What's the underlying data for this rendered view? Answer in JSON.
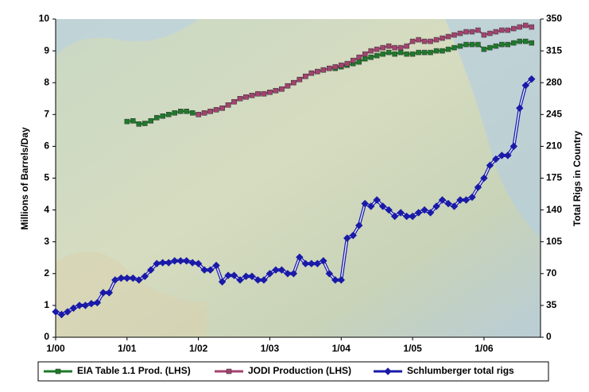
{
  "chart_data": {
    "type": "line",
    "ylabel": "Millions of Barrels/Day",
    "y2label": "Total Rigs in Country",
    "x": [
      0,
      1,
      2,
      3,
      4,
      5,
      6,
      7,
      8,
      9,
      10,
      11,
      12,
      13,
      14,
      15,
      16,
      17,
      18,
      19,
      20,
      21,
      22,
      23,
      24,
      25,
      26,
      27,
      28,
      29,
      30,
      31,
      32,
      33,
      34,
      35,
      36,
      37,
      38,
      39,
      40,
      41,
      42,
      43,
      44,
      45,
      46,
      47,
      48,
      49,
      50,
      51,
      52,
      53,
      54,
      55,
      56,
      57,
      58,
      59,
      60,
      61,
      62,
      63,
      64,
      65,
      66,
      67,
      68,
      69,
      70,
      71,
      72,
      73,
      74,
      75,
      76,
      77,
      78,
      79,
      80
    ],
    "xlim": [
      0,
      81.5
    ],
    "xticks": [
      {
        "value": 0,
        "label": "1/00"
      },
      {
        "value": 12,
        "label": "1/01"
      },
      {
        "value": 24,
        "label": "1/02"
      },
      {
        "value": 36,
        "label": "1/03"
      },
      {
        "value": 48,
        "label": "1/04"
      },
      {
        "value": 60,
        "label": "1/05"
      },
      {
        "value": 72,
        "label": "1/06"
      }
    ],
    "ylim": [
      0,
      10
    ],
    "yticks": [
      0,
      1,
      2,
      3,
      4,
      5,
      6,
      7,
      8,
      9,
      10
    ],
    "y2lim": [
      0,
      350
    ],
    "y2ticks": [
      0,
      35,
      70,
      105,
      140,
      175,
      210,
      245,
      280,
      315,
      350
    ],
    "legend": "bottom",
    "series": [
      {
        "name": "EIA Table 1.1 Prod. (LHS)",
        "color": "#1d7a2a",
        "marker": "square",
        "values": [
          null,
          null,
          null,
          null,
          null,
          null,
          null,
          null,
          null,
          null,
          null,
          null,
          6.78,
          6.8,
          6.7,
          6.72,
          6.8,
          6.9,
          6.95,
          7.0,
          7.05,
          7.1,
          7.1,
          7.05,
          7.0,
          7.05,
          7.1,
          7.15,
          7.2,
          7.3,
          7.4,
          7.5,
          7.55,
          7.6,
          7.65,
          7.65,
          7.7,
          7.75,
          7.8,
          7.9,
          8.0,
          8.1,
          8.2,
          8.3,
          8.35,
          8.4,
          8.45,
          8.45,
          8.5,
          8.55,
          8.6,
          8.65,
          8.75,
          8.8,
          8.85,
          8.9,
          8.95,
          8.9,
          8.95,
          8.9,
          8.9,
          8.95,
          8.95,
          8.95,
          9.0,
          9.0,
          9.05,
          9.1,
          9.15,
          9.2,
          9.2,
          9.2,
          9.05,
          9.1,
          9.15,
          9.2,
          9.2,
          9.25,
          9.3,
          9.3,
          9.25
        ]
      },
      {
        "name": "JODI Production (LHS)",
        "color": "#a3436f",
        "marker": "square",
        "values": [
          null,
          null,
          null,
          null,
          null,
          null,
          null,
          null,
          null,
          null,
          null,
          null,
          null,
          null,
          null,
          null,
          null,
          null,
          null,
          null,
          null,
          null,
          null,
          null,
          7.0,
          7.05,
          7.1,
          7.15,
          7.2,
          7.3,
          7.4,
          7.5,
          7.55,
          7.6,
          7.65,
          7.65,
          7.7,
          7.75,
          7.8,
          7.9,
          8.0,
          8.1,
          8.2,
          8.3,
          8.35,
          8.4,
          8.45,
          8.5,
          8.55,
          8.6,
          8.7,
          8.8,
          8.9,
          9.0,
          9.05,
          9.1,
          9.15,
          9.1,
          9.1,
          9.15,
          9.3,
          9.35,
          9.3,
          9.3,
          9.35,
          9.4,
          9.45,
          9.5,
          9.55,
          9.6,
          9.6,
          9.65,
          9.5,
          9.55,
          9.6,
          9.65,
          9.65,
          9.7,
          9.75,
          9.8,
          9.75
        ]
      },
      {
        "name": "Schlumberger total rigs",
        "color": "#1a1aa8",
        "marker": "diamond",
        "axis": "y2",
        "values": [
          28,
          25,
          28,
          32,
          35,
          35,
          37,
          38,
          49,
          49,
          63,
          65,
          65,
          65,
          63,
          67,
          74,
          81,
          82,
          82,
          84,
          84,
          84,
          82,
          81,
          74,
          74,
          79,
          61,
          68,
          68,
          63,
          67,
          67,
          63,
          63,
          70,
          74,
          74,
          70,
          70,
          88,
          81,
          81,
          81,
          84,
          70,
          63,
          63,
          109,
          112,
          123,
          147,
          144,
          151,
          144,
          140,
          133,
          137,
          133,
          133,
          137,
          140,
          137,
          144,
          151,
          147,
          144,
          151,
          151,
          154,
          165,
          175,
          189,
          196,
          200,
          200,
          210,
          252,
          277,
          284
        ]
      }
    ]
  }
}
